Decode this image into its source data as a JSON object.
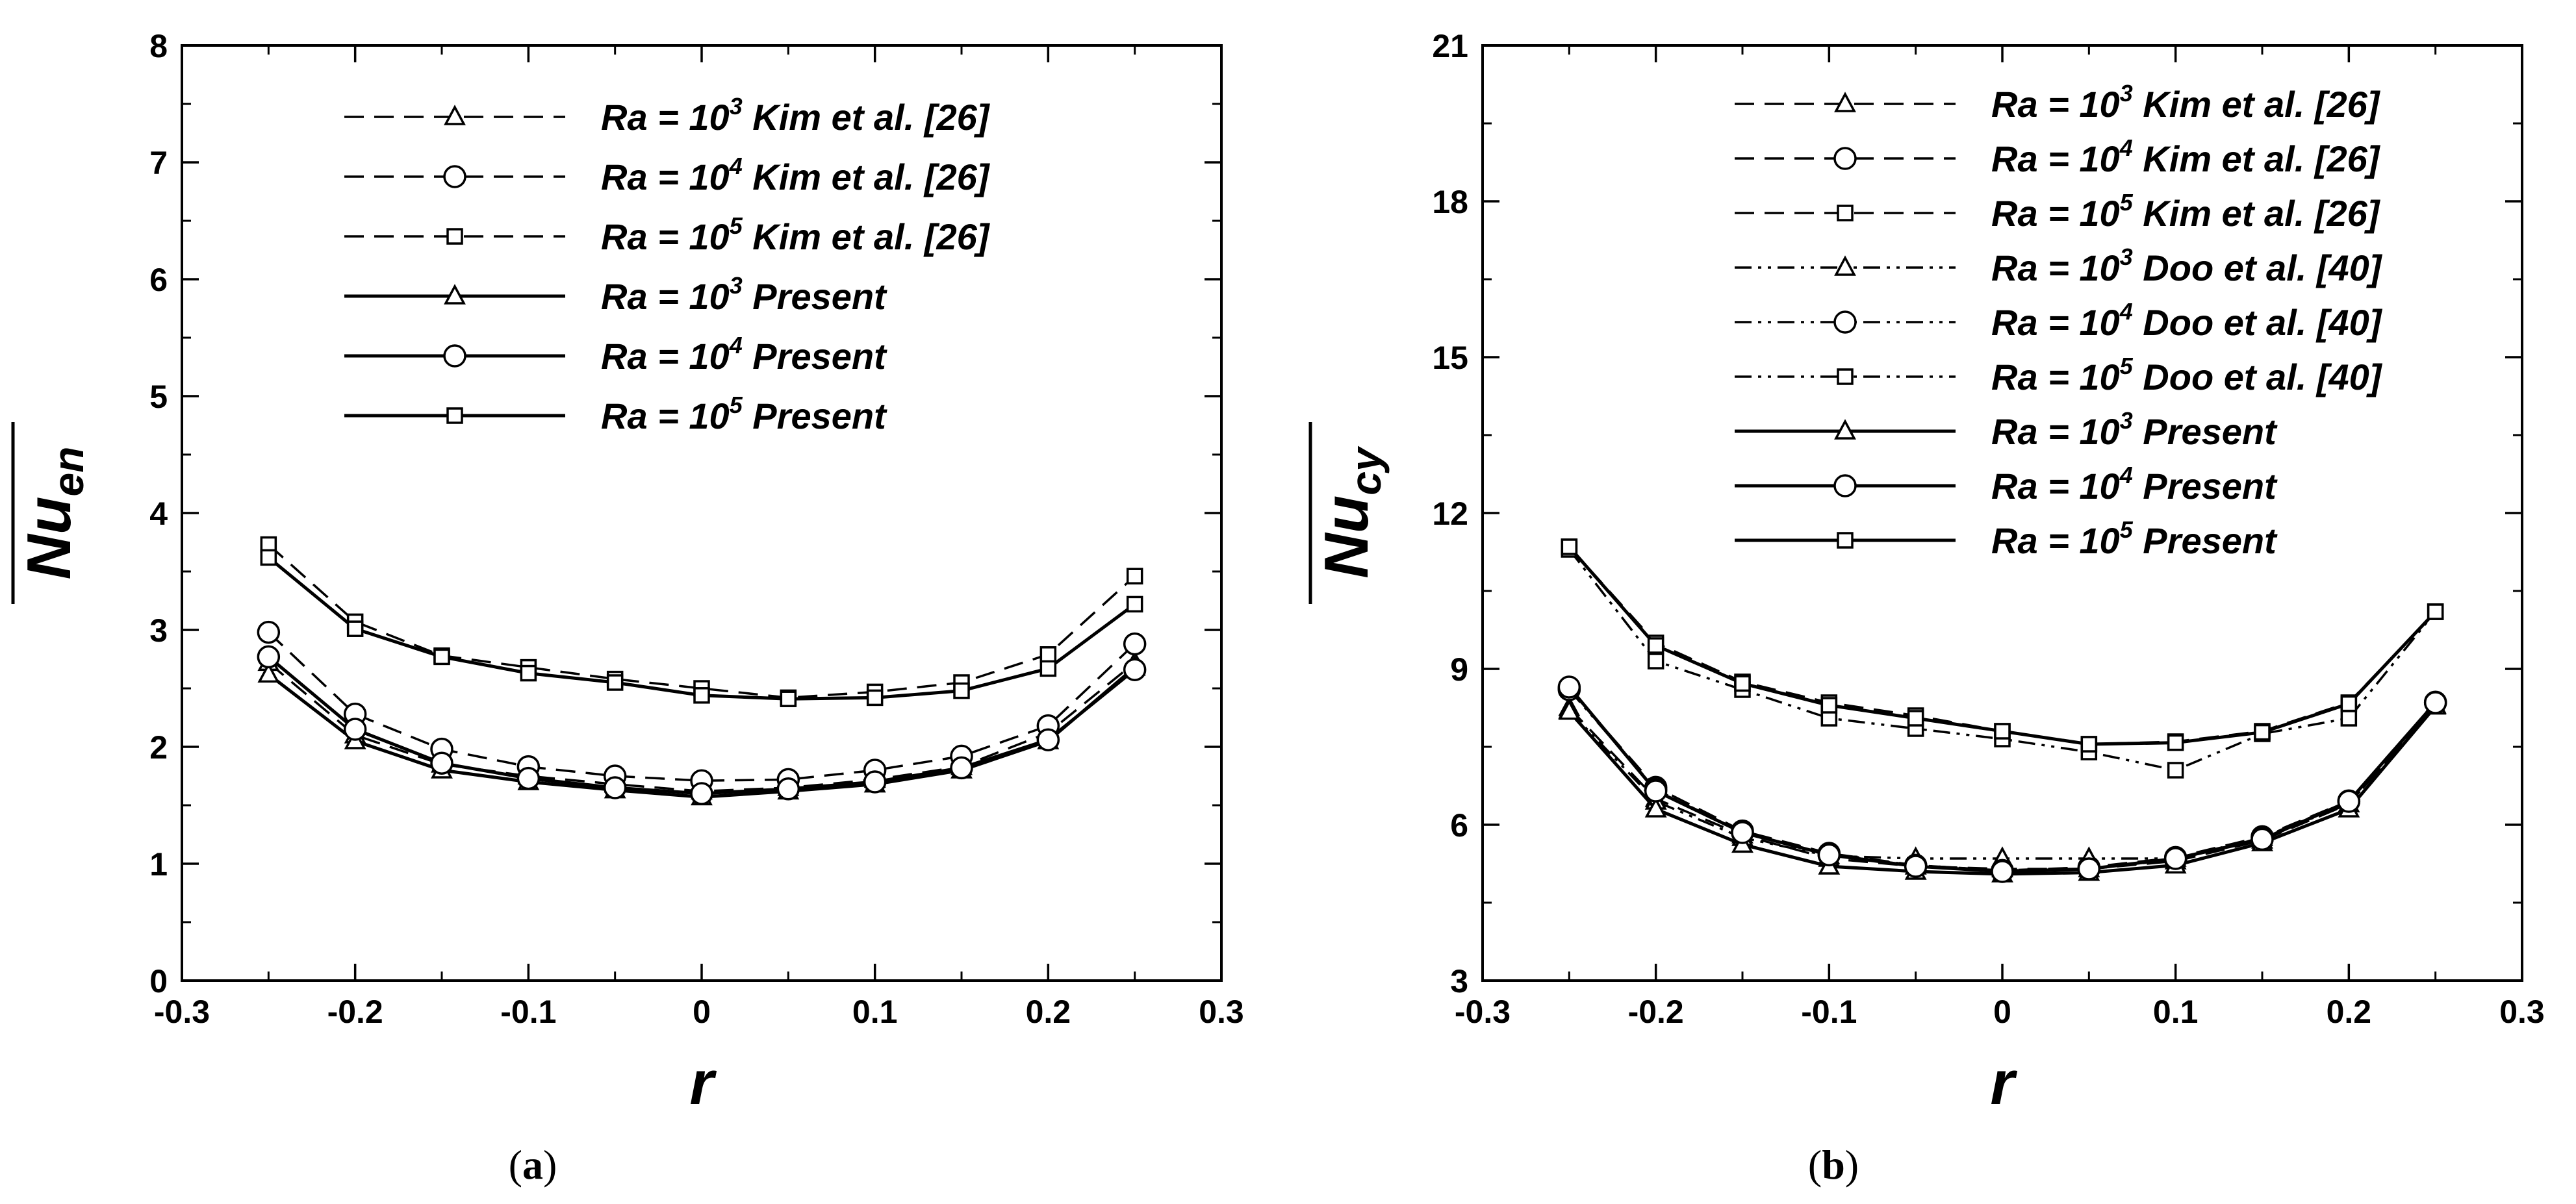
{
  "chart_data": [
    {
      "type": "line",
      "panel_label": "(a)",
      "panel_letter": "a",
      "xlabel": "r",
      "ylabel": "Nu",
      "ylabel_sub": "en",
      "xlim": [
        -0.3,
        0.3
      ],
      "ylim": [
        0,
        8
      ],
      "xticks": [
        -0.3,
        -0.2,
        -0.1,
        0,
        0.1,
        0.2,
        0.3
      ],
      "xtick_labels": [
        "-0.3",
        "-0.2",
        "-0.1",
        "0",
        "0.1",
        "0.2",
        "0.3"
      ],
      "yticks": [
        0,
        1,
        2,
        3,
        4,
        5,
        6,
        7,
        8
      ],
      "ytick_labels": [
        "0",
        "1",
        "2",
        "3",
        "4",
        "5",
        "6",
        "7",
        "8"
      ],
      "legend_position": "top-center",
      "x": [
        -0.25,
        -0.2,
        -0.15,
        -0.1,
        -0.05,
        0,
        0.05,
        0.1,
        0.15,
        0.2,
        0.25
      ],
      "series": [
        {
          "name": "Ra = 10³ Kim et al. [26]",
          "ra_text": "Ra = 10",
          "ra_exp": "3",
          "source": " Kim et al. [26]",
          "style": "dashed",
          "marker": "triangle",
          "values": [
            2.72,
            2.1,
            1.85,
            1.75,
            1.68,
            1.62,
            1.65,
            1.72,
            1.83,
            2.12,
            2.72
          ]
        },
        {
          "name": "Ra = 10⁴ Kim et al. [26]",
          "ra_text": "Ra = 10",
          "ra_exp": "4",
          "source": " Kim et al. [26]",
          "style": "dashed",
          "marker": "circle",
          "values": [
            2.98,
            2.28,
            1.98,
            1.83,
            1.75,
            1.71,
            1.72,
            1.8,
            1.92,
            2.18,
            2.88
          ]
        },
        {
          "name": "Ra = 10⁵ Kim et al. [26]",
          "ra_text": "Ra = 10",
          "ra_exp": "5",
          "source": " Kim et al. [26]",
          "style": "dashed",
          "marker": "square",
          "values": [
            3.73,
            3.07,
            2.78,
            2.68,
            2.58,
            2.5,
            2.42,
            2.47,
            2.55,
            2.79,
            3.46
          ]
        },
        {
          "name": "Ra = 10³ Present",
          "ra_text": "Ra = 10",
          "ra_exp": "3",
          "source": " Present",
          "style": "solid",
          "marker": "triangle",
          "values": [
            2.62,
            2.05,
            1.8,
            1.7,
            1.63,
            1.57,
            1.62,
            1.68,
            1.8,
            2.05,
            2.68
          ]
        },
        {
          "name": "Ra = 10⁴ Present",
          "ra_text": "Ra = 10",
          "ra_exp": "4",
          "source": " Present",
          "style": "solid",
          "marker": "circle",
          "values": [
            2.77,
            2.15,
            1.86,
            1.73,
            1.65,
            1.6,
            1.64,
            1.7,
            1.82,
            2.06,
            2.66
          ]
        },
        {
          "name": "Ra = 10⁵ Present",
          "ra_text": "Ra = 10",
          "ra_exp": "5",
          "source": " Present",
          "style": "solid",
          "marker": "square",
          "values": [
            3.62,
            3.01,
            2.77,
            2.63,
            2.55,
            2.44,
            2.41,
            2.42,
            2.48,
            2.67,
            3.22
          ]
        }
      ]
    },
    {
      "type": "line",
      "panel_label": "(b)",
      "panel_letter": "b",
      "xlabel": "r",
      "ylabel": "Nu",
      "ylabel_sub": "cy",
      "xlim": [
        -0.3,
        0.3
      ],
      "ylim": [
        3,
        21
      ],
      "xticks": [
        -0.3,
        -0.2,
        -0.1,
        0,
        0.1,
        0.2,
        0.3
      ],
      "xtick_labels": [
        "-0.3",
        "-0.2",
        "-0.1",
        "0",
        "0.1",
        "0.2",
        "0.3"
      ],
      "yticks": [
        3,
        6,
        9,
        12,
        15,
        18,
        21
      ],
      "ytick_labels": [
        "3",
        "6",
        "9",
        "12",
        "15",
        "18",
        "21"
      ],
      "legend_position": "top-center",
      "x": [
        -0.25,
        -0.2,
        -0.15,
        -0.1,
        -0.05,
        0,
        0.05,
        0.1,
        0.15,
        0.2,
        0.25
      ],
      "series": [
        {
          "name": "Ra = 10³ Kim et al. [26]",
          "ra_text": "Ra = 10",
          "ra_exp": "3",
          "source": " Kim et al. [26]",
          "style": "dashed",
          "marker": "triangle",
          "values": [
            8.25,
            6.5,
            5.8,
            5.35,
            5.2,
            5.15,
            5.15,
            5.3,
            5.7,
            6.4,
            8.3
          ]
        },
        {
          "name": "Ra = 10⁴ Kim et al. [26]",
          "ra_text": "Ra = 10",
          "ra_exp": "4",
          "source": " Kim et al. [26]",
          "style": "dashed",
          "marker": "circle",
          "values": [
            8.62,
            6.72,
            5.88,
            5.45,
            5.22,
            5.12,
            5.18,
            5.37,
            5.77,
            6.46,
            8.36
          ]
        },
        {
          "name": "Ra = 10⁵ Kim et al. [26]",
          "ra_text": "Ra = 10",
          "ra_exp": "5",
          "source": " Kim et al. [26]",
          "style": "dashed",
          "marker": "square",
          "values": [
            11.35,
            9.5,
            8.75,
            8.35,
            8.1,
            7.8,
            7.55,
            7.6,
            7.8,
            8.35,
            10.1
          ]
        },
        {
          "name": "Ra = 10³ Doo et al. [40]",
          "ra_text": "Ra = 10",
          "ra_exp": "3",
          "source": " Doo et al. [40]",
          "style": "dashdotdot",
          "marker": "triangle",
          "values": [
            8.2,
            6.45,
            5.75,
            5.4,
            5.35,
            5.35,
            5.35,
            5.35,
            5.75,
            6.4,
            8.3
          ]
        },
        {
          "name": "Ra = 10⁴ Doo et al. [40]",
          "ra_text": "Ra = 10",
          "ra_exp": "4",
          "source": " Doo et al. [40]",
          "style": "dashdotdot",
          "marker": "circle",
          "values": [
            8.6,
            6.68,
            5.85,
            5.42,
            5.22,
            5.12,
            5.15,
            5.33,
            5.75,
            6.45,
            8.35
          ]
        },
        {
          "name": "Ra = 10⁵ Doo et al. [40]",
          "ra_text": "Ra = 10",
          "ra_exp": "5",
          "source": " Doo et al. [40]",
          "style": "dashdotdot",
          "marker": "square",
          "values": [
            11.3,
            9.15,
            8.6,
            8.05,
            7.85,
            7.65,
            7.4,
            7.05,
            7.75,
            8.05,
            10.1
          ]
        },
        {
          "name": "Ra = 10³ Present",
          "ra_text": "Ra = 10",
          "ra_exp": "3",
          "source": " Present",
          "style": "solid",
          "marker": "triangle",
          "values": [
            8.18,
            6.3,
            5.62,
            5.2,
            5.1,
            5.05,
            5.08,
            5.22,
            5.65,
            6.3,
            8.28
          ]
        },
        {
          "name": "Ra = 10⁴ Present",
          "ra_text": "Ra = 10",
          "ra_exp": "4",
          "source": " Present",
          "style": "solid",
          "marker": "circle",
          "values": [
            8.65,
            6.65,
            5.85,
            5.42,
            5.2,
            5.1,
            5.15,
            5.35,
            5.72,
            6.45,
            8.35
          ]
        },
        {
          "name": "Ra = 10⁵ Present",
          "ra_text": "Ra = 10",
          "ra_exp": "5",
          "source": " Present",
          "style": "solid",
          "marker": "square",
          "values": [
            11.35,
            9.45,
            8.72,
            8.3,
            8.05,
            7.8,
            7.55,
            7.58,
            7.78,
            8.33,
            10.1
          ]
        }
      ]
    }
  ]
}
